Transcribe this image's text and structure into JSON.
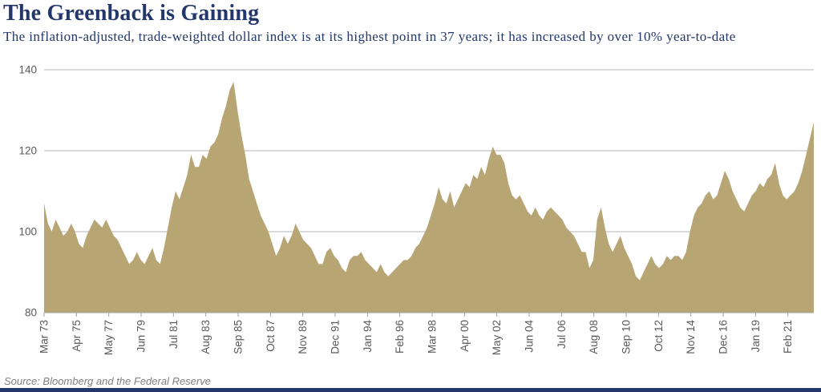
{
  "header": {
    "title": "The Greenback is Gaining",
    "subtitle": "The inflation-adjusted, trade-weighted dollar index is at its highest point in 37 years; it has increased by over 10% year-to-date"
  },
  "footer": {
    "source": "Source: Bloomberg and the Federal Reserve"
  },
  "colors": {
    "accent_navy": "#23376b",
    "area_fill": "#b7a574",
    "gridline": "#b3b3b3",
    "axis_line": "#a3a3a3",
    "axis_text": "#595959",
    "source_text": "#7f7f7f"
  },
  "chart_data": {
    "type": "area",
    "title": "The Greenback is Gaining",
    "subtitle": "The inflation-adjusted, trade-weighted dollar index is at its highest point in 37 years; it has increased by over 10% year-to-date",
    "series_name": "Inflation-adjusted trade-weighted dollar index",
    "xlabel": "",
    "ylabel": "",
    "legend": "none",
    "grid": "horizontal",
    "ylim": [
      80,
      140
    ],
    "yticks": [
      80,
      100,
      120,
      140
    ],
    "x_start": "Mar 1973",
    "x_end": "Oct 2022",
    "frequency": "quarterly",
    "total_span_months": 595,
    "tick_interval_months": 25,
    "categories": [
      "Mar 73",
      "Apr 75",
      "May 77",
      "Jun 79",
      "Jul 81",
      "Aug 83",
      "Sep 85",
      "Oct 87",
      "Nov 89",
      "Dec 91",
      "Jan 94",
      "Feb 96",
      "Mar 98",
      "Apr 00",
      "May 02",
      "Jun 04",
      "Jul 06",
      "Aug 08",
      "Sep 10",
      "Oct 12",
      "Nov 14",
      "Dec 16",
      "Jan 19",
      "Feb 21"
    ],
    "values": [
      107,
      102,
      100,
      103,
      101,
      99,
      100,
      102,
      100,
      97,
      96,
      99,
      101,
      103,
      102,
      101,
      103,
      101,
      99,
      98,
      96,
      94,
      92,
      93,
      95,
      93,
      92,
      94,
      96,
      93,
      92,
      96,
      101,
      106,
      110,
      108,
      111,
      114,
      119,
      116,
      116,
      119,
      118,
      121,
      122,
      124,
      128,
      131,
      135,
      137,
      130,
      124,
      119,
      113,
      110,
      107,
      104,
      102,
      100,
      97,
      94,
      96,
      99,
      97,
      99,
      102,
      100,
      98,
      97,
      96,
      94,
      92,
      92,
      95,
      96,
      94,
      93,
      91,
      90,
      93,
      94,
      94,
      95,
      93,
      92,
      91,
      90,
      92,
      90,
      89,
      90,
      91,
      92,
      93,
      93,
      94,
      96,
      97,
      99,
      101,
      104,
      107,
      111,
      108,
      107,
      110,
      106,
      108,
      110,
      112,
      111,
      114,
      113,
      116,
      114,
      118,
      121,
      119,
      119,
      117,
      112,
      109,
      108,
      109,
      107,
      105,
      104,
      106,
      104,
      103,
      105,
      106,
      105,
      104,
      103,
      101,
      100,
      99,
      97,
      95,
      95,
      91,
      93,
      103,
      106,
      101,
      97,
      95,
      97,
      99,
      96,
      94,
      92,
      89,
      88,
      90,
      92,
      94,
      92,
      91,
      92,
      94,
      93,
      94,
      94,
      93,
      95,
      100,
      104,
      106,
      107,
      109,
      110,
      108,
      109,
      112,
      115,
      113,
      110,
      108,
      106,
      105,
      107,
      109,
      110,
      112,
      111,
      113,
      114,
      117,
      112,
      109,
      108,
      109,
      110,
      112,
      115,
      119,
      123,
      127
    ]
  }
}
